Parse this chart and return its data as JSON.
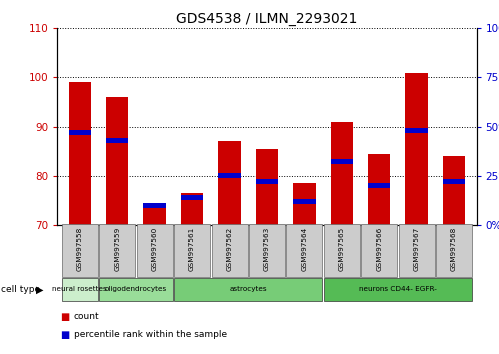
{
  "title": "GDS4538 / ILMN_2293021",
  "samples": [
    "GSM997558",
    "GSM997559",
    "GSM997560",
    "GSM997561",
    "GSM997562",
    "GSM997563",
    "GSM997564",
    "GSM997565",
    "GSM997566",
    "GSM997567",
    "GSM997568"
  ],
  "count_values": [
    99,
    96,
    74,
    76.5,
    87,
    85.5,
    78.5,
    91,
    84.5,
    101,
    84
  ],
  "percentile_values": [
    47,
    43,
    10,
    14,
    25,
    22,
    12,
    32,
    20,
    48,
    22
  ],
  "ylim_left": [
    70,
    110
  ],
  "ylim_right": [
    0,
    100
  ],
  "yticks_left": [
    70,
    80,
    90,
    100,
    110
  ],
  "yticks_right": [
    0,
    25,
    50,
    75,
    100
  ],
  "bar_color": "#cc0000",
  "percentile_color": "#0000cc",
  "cell_type_groups": [
    {
      "label": "neural rosettes",
      "cols": [
        0
      ],
      "color": "#cceecc"
    },
    {
      "label": "oligodendrocytes",
      "cols": [
        1,
        2
      ],
      "color": "#99dd99"
    },
    {
      "label": "astrocytes",
      "cols": [
        3,
        4,
        5,
        6
      ],
      "color": "#77cc77"
    },
    {
      "label": "neurons CD44- EGFR-",
      "cols": [
        7,
        8,
        9,
        10
      ],
      "color": "#55bb55"
    }
  ],
  "legend_count_label": "count",
  "legend_pct_label": "percentile rank within the sample"
}
